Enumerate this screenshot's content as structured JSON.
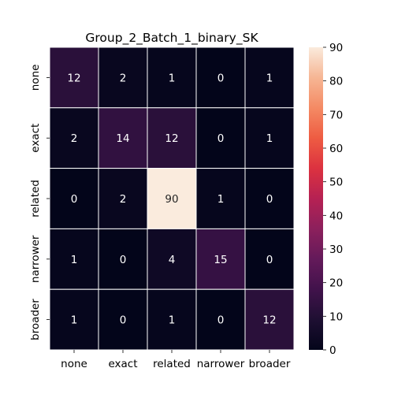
{
  "chart_data": {
    "type": "heatmap",
    "title": "Group_2_Batch_1_binary_SK",
    "xlabel": "",
    "ylabel": "",
    "x_categories": [
      "none",
      "exact",
      "related",
      "narrower",
      "broader"
    ],
    "y_categories": [
      "none",
      "exact",
      "related",
      "narrower",
      "broader"
    ],
    "values": [
      [
        12,
        2,
        1,
        0,
        1
      ],
      [
        2,
        14,
        12,
        0,
        1
      ],
      [
        0,
        2,
        90,
        1,
        0
      ],
      [
        1,
        0,
        4,
        15,
        0
      ],
      [
        1,
        0,
        1,
        0,
        12
      ]
    ],
    "colorbar": {
      "min": 0,
      "max": 90,
      "ticks": [
        0,
        10,
        20,
        30,
        40,
        50,
        60,
        70,
        80,
        90
      ],
      "colormap": "rocket"
    },
    "annotated": true,
    "cell_separator_color": "#ffffff"
  }
}
